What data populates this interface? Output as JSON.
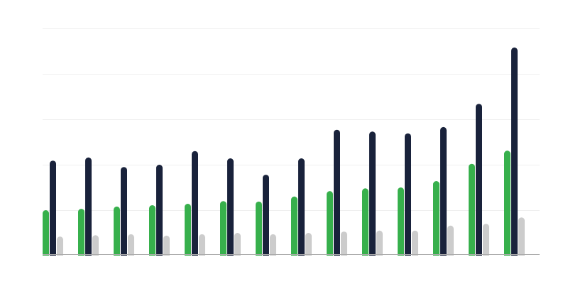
{
  "chart_data": {
    "type": "bar",
    "title": "",
    "xlabel": "",
    "ylabel": "",
    "categories": [
      "",
      "",
      "",
      "",
      "",
      "",
      "",
      "",
      "",
      "",
      "",
      "",
      "",
      ""
    ],
    "ylim": [
      0,
      5
    ],
    "grid": true,
    "legend": "none",
    "series": [
      {
        "color": "#37b04c",
        "values": [
          1.0,
          1.03,
          1.08,
          1.11,
          1.14,
          1.2,
          1.19,
          1.3,
          1.42,
          1.48,
          1.5,
          1.64,
          2.02,
          2.31
        ]
      },
      {
        "color": "#19223b",
        "values": [
          2.09,
          2.16,
          1.95,
          2.0,
          2.3,
          2.14,
          1.78,
          2.14,
          2.77,
          2.73,
          2.69,
          2.83,
          3.34,
          4.58
        ]
      },
      {
        "color": "#cccccc",
        "values": [
          0.42,
          0.45,
          0.47,
          0.44,
          0.47,
          0.5,
          0.47,
          0.5,
          0.53,
          0.55,
          0.55,
          0.66,
          0.7,
          0.84
        ]
      }
    ]
  }
}
